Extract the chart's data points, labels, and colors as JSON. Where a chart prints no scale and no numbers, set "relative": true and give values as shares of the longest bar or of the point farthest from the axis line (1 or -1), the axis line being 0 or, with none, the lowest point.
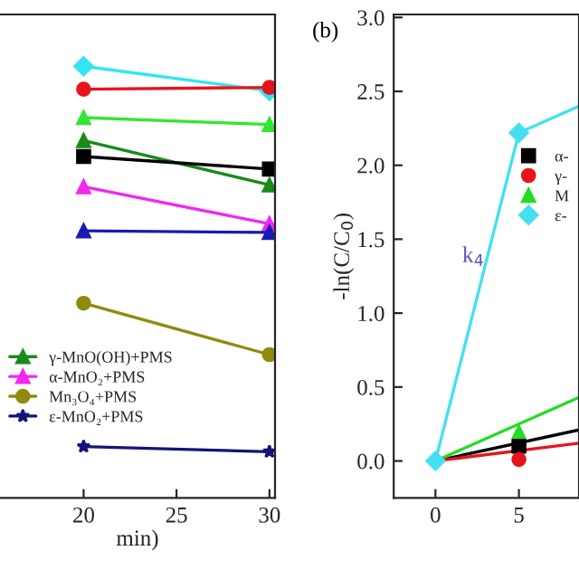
{
  "chart_data": [
    {
      "type": "line",
      "relative": true,
      "xlabel": "min)",
      "xlim": [
        15.5,
        30.3
      ],
      "xticks": [
        20,
        25,
        30
      ],
      "tick_labels": "x",
      "legend": "bottom left",
      "grid": false,
      "x": [
        20,
        30
      ],
      "series": [
        {
          "color": "#33e5f0",
          "marker": "diamond",
          "values": [
            1.0,
            0.943
          ]
        },
        {
          "color": "#e8141b",
          "marker": "circle",
          "values": [
            0.947,
            0.951
          ]
        },
        {
          "color": "#33e633",
          "marker": "triangle",
          "values": [
            0.881,
            0.865
          ]
        },
        {
          "color": "#1a8a1a",
          "marker": "triangle",
          "name": "γ-MnO(OH)+PMS",
          "values": [
            0.828,
            0.725
          ]
        },
        {
          "color": "#000000",
          "marker": "square",
          "values": [
            0.791,
            0.762
          ]
        },
        {
          "color": "#f028f0",
          "marker": "triangle",
          "name": "α-MnO₂+PMS",
          "values": [
            0.721,
            0.635
          ]
        },
        {
          "color": "#1a1ab4",
          "marker": "triangle",
          "values": [
            0.619,
            0.615
          ]
        },
        {
          "color": "#8f8a10",
          "marker": "circle",
          "name": "Mn₃O₄+PMS",
          "values": [
            0.451,
            0.332
          ]
        },
        {
          "color": "#14147a",
          "marker": "star",
          "name": "ε-MnO₂+PMS",
          "values": [
            0.119,
            0.107
          ]
        }
      ]
    },
    {
      "type": "scatter",
      "ylabel": "-ln(C/C$_{0}$)",
      "xlim": [
        -2.5,
        8.6
      ],
      "xticks": [
        0,
        5
      ],
      "ylim": [
        -0.25,
        3.02
      ],
      "yticks": [
        {
          "value": 0,
          "label": "0.0"
        },
        {
          "value": 0.5,
          "label": "0.5"
        },
        {
          "value": 1,
          "label": "1.0"
        },
        {
          "value": 1.5,
          "label": "1.5"
        },
        {
          "value": 2,
          "label": "2.0"
        },
        {
          "value": 2.5,
          "label": "2.5"
        },
        {
          "value": 3,
          "label": "3.0"
        }
      ],
      "legend": "top right",
      "grid": false,
      "annotations": [
        "(b)",
        "k$_{4}$"
      ],
      "series": [
        {
          "type": "line",
          "color": "#000000",
          "x": [
            0,
            8.6
          ],
          "values": [
            0,
            0.21
          ]
        },
        {
          "type": "line",
          "color": "#e8141b",
          "x": [
            0,
            8.6
          ],
          "values": [
            0,
            0.12
          ]
        },
        {
          "type": "line",
          "color": "#22dd22",
          "x": [
            0,
            8.6
          ],
          "values": [
            0,
            0.43
          ]
        },
        {
          "type": "line",
          "color": "#44e0f0",
          "x": [
            0,
            5,
            8.6
          ],
          "values": [
            0,
            2.22,
            2.4
          ]
        },
        {
          "name": "α-",
          "color": "#000000",
          "marker": "square",
          "x": [
            5
          ],
          "values": [
            0.1
          ]
        },
        {
          "name": "γ-",
          "color": "#e8141b",
          "marker": "circle",
          "x": [
            5
          ],
          "values": [
            0.01
          ]
        },
        {
          "name": "M",
          "color": "#22dd22",
          "marker": "triangle",
          "x": [
            5
          ],
          "values": [
            0.2
          ]
        },
        {
          "name": "ε-",
          "color": "#44e0f0",
          "marker": "diamond",
          "x": [
            0,
            5
          ],
          "values": [
            0,
            2.22
          ]
        }
      ]
    }
  ]
}
